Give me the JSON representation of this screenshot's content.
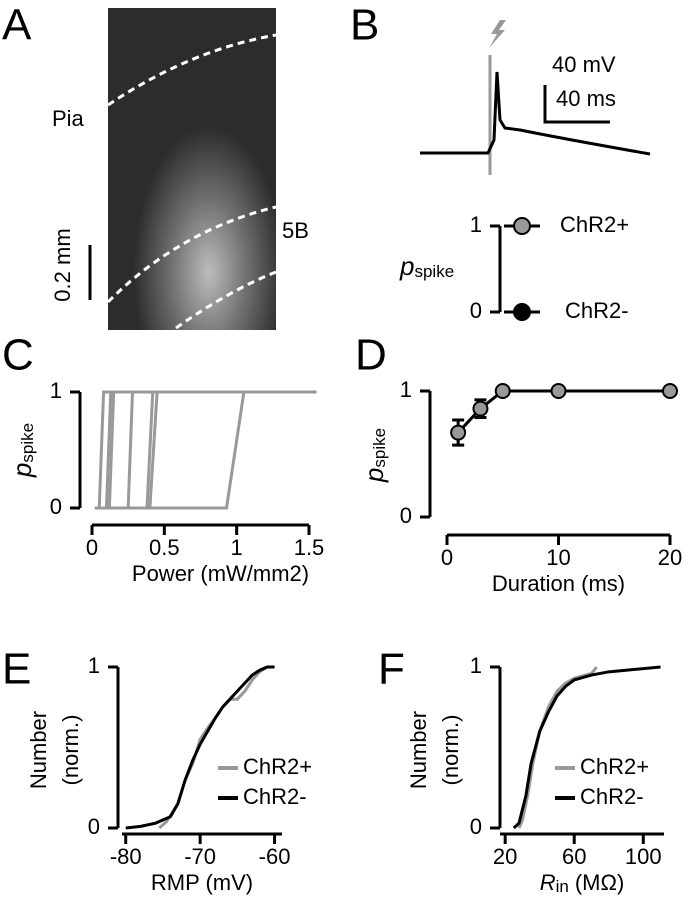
{
  "panels": [
    "A",
    "B",
    "C",
    "D",
    "E",
    "F"
  ],
  "image": {
    "top_label": "Pia",
    "layer_label": "5B",
    "scale_bar": "0.2 mm"
  },
  "trace_scale": [
    "40 mV",
    "40 ms"
  ],
  "chart_data": [
    {
      "type": "scatter",
      "y_label": "p",
      "y_label_sub": "spike",
      "ylim": [
        0,
        1
      ],
      "yticks": [
        0,
        1
      ],
      "series": [
        {
          "name": "ChR2+",
          "color": "#999999",
          "values": [
            1
          ]
        },
        {
          "name": "ChR2-",
          "color": "#000000",
          "values": [
            0
          ]
        }
      ]
    },
    {
      "type": "line",
      "x_label": "Power (mW/mm2)",
      "y_label": "p",
      "y_label_sub": "spike",
      "xlim": [
        0,
        1.5
      ],
      "xticks": [
        0,
        0.5,
        1,
        1.5
      ],
      "ylim": [
        0,
        1
      ],
      "yticks": [
        0,
        1
      ],
      "series": [
        {
          "color": "#999999",
          "x": [
            0.02,
            0.05,
            0.08,
            1.55
          ],
          "values": [
            0,
            0,
            1,
            1
          ]
        },
        {
          "color": "#999999",
          "x": [
            0.02,
            0.1,
            0.13,
            1.55
          ],
          "values": [
            0,
            0,
            1,
            1
          ]
        },
        {
          "color": "#999999",
          "x": [
            0.02,
            0.12,
            0.15,
            1.55
          ],
          "values": [
            0,
            0,
            1,
            1
          ]
        },
        {
          "color": "#999999",
          "x": [
            0.02,
            0.25,
            0.28,
            1.55
          ],
          "values": [
            0,
            0,
            1,
            1
          ]
        },
        {
          "color": "#999999",
          "x": [
            0.02,
            0.38,
            0.42,
            1.55
          ],
          "values": [
            0,
            0,
            1,
            1
          ]
        },
        {
          "color": "#999999",
          "x": [
            0.02,
            0.4,
            0.45,
            1.55
          ],
          "values": [
            0,
            0,
            1,
            1
          ]
        },
        {
          "color": "#999999",
          "x": [
            0.02,
            0.93,
            1.05,
            1.55
          ],
          "values": [
            0,
            0,
            1,
            1
          ]
        }
      ]
    },
    {
      "type": "errorbar",
      "x_label": "Duration (ms)",
      "y_label": "p",
      "y_label_sub": "spike",
      "xlim": [
        0,
        20
      ],
      "xticks": [
        0,
        10,
        20
      ],
      "ylim": [
        0,
        1
      ],
      "yticks": [
        0,
        1
      ],
      "x": [
        1,
        3,
        5,
        10,
        20
      ],
      "values": [
        0.67,
        0.86,
        1,
        1,
        1
      ],
      "errors": [
        0.1,
        0.07,
        0,
        0,
        0
      ],
      "color": "#999999"
    },
    {
      "type": "line",
      "x_label": "RMP (mV)",
      "y_label": [
        "Number",
        "(norm.)"
      ],
      "xlim": [
        -80.5,
        -59
      ],
      "xticks": [
        -80,
        -70,
        -60
      ],
      "ylim": [
        0,
        1
      ],
      "yticks": [
        0,
        1
      ],
      "legend": "lower right",
      "series": [
        {
          "name": "ChR2+",
          "color": "#999999",
          "x": [
            -75.5,
            -74.5,
            -73,
            -72,
            -71,
            -70,
            -69,
            -68,
            -67,
            -66,
            -65,
            -64,
            -63,
            -62,
            -61
          ],
          "values": [
            0,
            0.04,
            0.15,
            0.3,
            0.4,
            0.55,
            0.62,
            0.68,
            0.75,
            0.8,
            0.8,
            0.85,
            0.92,
            0.97,
            1
          ]
        },
        {
          "name": "ChR2-",
          "color": "#000000",
          "x": [
            -80,
            -78,
            -76,
            -74,
            -73,
            -72,
            -71,
            -70,
            -69,
            -68,
            -67,
            -66,
            -65,
            -64,
            -63,
            -62,
            -61,
            -60
          ],
          "values": [
            0,
            0.01,
            0.03,
            0.07,
            0.15,
            0.3,
            0.42,
            0.52,
            0.6,
            0.68,
            0.75,
            0.8,
            0.85,
            0.9,
            0.95,
            0.98,
            1,
            1
          ]
        }
      ]
    },
    {
      "type": "line",
      "x_label": "R",
      "x_label_sub": "in",
      "x_label_unit": "(MΩ)",
      "y_label": [
        "Number",
        "(norm.)"
      ],
      "xlim": [
        17,
        112
      ],
      "xticks": [
        20,
        60,
        100
      ],
      "ylim": [
        0,
        1
      ],
      "yticks": [
        0,
        1
      ],
      "legend": "lower right",
      "series": [
        {
          "name": "ChR2+",
          "color": "#999999",
          "x": [
            28,
            30,
            33,
            36,
            40,
            45,
            50,
            55,
            60,
            70,
            73
          ],
          "values": [
            0,
            0.05,
            0.2,
            0.4,
            0.6,
            0.75,
            0.85,
            0.9,
            0.93,
            0.96,
            1
          ]
        },
        {
          "name": "ChR2-",
          "color": "#000000",
          "x": [
            25,
            28,
            32,
            35,
            40,
            45,
            50,
            55,
            60,
            70,
            80,
            90,
            100,
            110
          ],
          "values": [
            0,
            0.03,
            0.2,
            0.4,
            0.6,
            0.72,
            0.82,
            0.88,
            0.92,
            0.95,
            0.97,
            0.98,
            0.99,
            1
          ]
        }
      ]
    }
  ]
}
